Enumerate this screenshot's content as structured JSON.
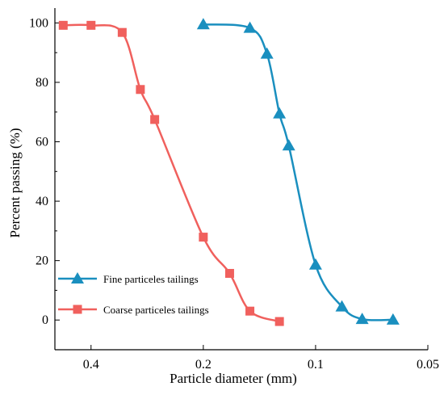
{
  "chart_data": {
    "type": "line",
    "xlabel": "Particle diameter  (mm)",
    "ylabel": "Percent passing  (%)",
    "x_scale": "log",
    "x_reversed": true,
    "xlim": [
      0.5,
      0.05
    ],
    "ylim": [
      -10,
      105
    ],
    "x_ticks": [
      0.4,
      0.2,
      0.1,
      0.05
    ],
    "x_tick_labels": [
      "0.4",
      "0.2",
      "0.1",
      "0.05"
    ],
    "y_ticks": [
      0,
      20,
      40,
      60,
      80,
      100
    ],
    "y_tick_labels": [
      "0",
      "20",
      "40",
      "60",
      "80",
      "100"
    ],
    "grid": false,
    "legend_position": "lower-left",
    "series": [
      {
        "name": "Fine particeles tailings",
        "color": "#1a8fbf",
        "marker": "triangle",
        "x": [
          0.2,
          0.15,
          0.135,
          0.125,
          0.118,
          0.1,
          0.085,
          0.075,
          0.062
        ],
        "y": [
          99.5,
          98.3,
          89.6,
          69.5,
          58.7,
          18.6,
          4.5,
          0.3,
          0.1
        ]
      },
      {
        "name": "Coarse particeles tailings",
        "color": "#f0605d",
        "marker": "square",
        "x": [
          0.475,
          0.4,
          0.33,
          0.295,
          0.27,
          0.2,
          0.17,
          0.15,
          0.125
        ],
        "y": [
          99.2,
          99.2,
          96.8,
          77.6,
          67.5,
          27.9,
          15.7,
          3.0,
          -0.5
        ]
      }
    ]
  }
}
